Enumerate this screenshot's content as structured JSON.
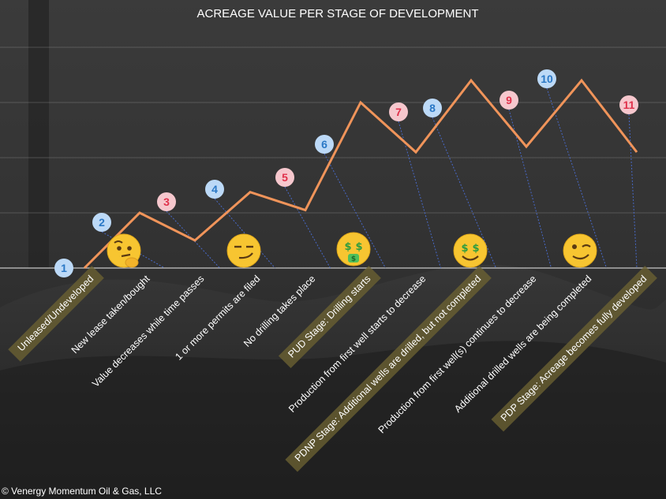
{
  "chart_data": {
    "type": "line",
    "title": "ACREAGE VALUE PER STAGE OF DEVELOPMENT",
    "xlabel": "",
    "ylabel": "",
    "grid": true,
    "legend": "none",
    "x": [
      1,
      2,
      3,
      4,
      5,
      6,
      7,
      8,
      9,
      10,
      11
    ],
    "series": [
      {
        "values": [
          0,
          2,
          1,
          2.75,
          2.1,
          6,
          4.2,
          6.8,
          4.4,
          6.8,
          4.2
        ]
      }
    ],
    "ylim": [
      0,
      8
    ],
    "categories": [
      "Unleased/Undeveloped",
      "New lease taken/bought",
      "Value decreases while time passes",
      "1 or more permits are filed",
      "No drilling takes place",
      "PUD Stage: Drilling starts",
      "Production from first well starts to decrease",
      "PDNP Stage: Additional wells are drilled, but not completed",
      "Production from first well(s) continues to decrease",
      "Additional drilled wells are being completed",
      "PDP Stage: Acreage becomes fully developed"
    ],
    "highlighted_stages": [
      1,
      6,
      8,
      11
    ],
    "step_markers": [
      {
        "label": "1",
        "kind": "up"
      },
      {
        "label": "2",
        "kind": "up"
      },
      {
        "label": "3",
        "kind": "down"
      },
      {
        "label": "4",
        "kind": "up"
      },
      {
        "label": "5",
        "kind": "down"
      },
      {
        "label": "6",
        "kind": "up"
      },
      {
        "label": "7",
        "kind": "down"
      },
      {
        "label": "8",
        "kind": "up"
      },
      {
        "label": "9",
        "kind": "down"
      },
      {
        "label": "10",
        "kind": "up"
      },
      {
        "label": "11",
        "kind": "down"
      }
    ],
    "emojis": [
      {
        "name": "thinking-face-emoji",
        "glyph": "🤔"
      },
      {
        "name": "smirking-face-emoji",
        "glyph": "😏"
      },
      {
        "name": "money-mouth-face-emoji",
        "glyph": "🤑"
      },
      {
        "name": "dollar-eyes-face-emoji",
        "glyph": "🤑"
      },
      {
        "name": "winking-face-emoji",
        "glyph": "😉"
      }
    ],
    "colors": {
      "line": "#f0945a",
      "up_marker_fill": "#bcd9f7",
      "up_marker_text": "#2a78c6",
      "down_marker_fill": "#f6c7cd",
      "down_marker_text": "#e0304a",
      "highlight_band": "#6b6232",
      "connector": "#4a6fd8"
    }
  },
  "footer": {
    "copyright": "© Venergy Momentum Oil & Gas, LLC"
  }
}
